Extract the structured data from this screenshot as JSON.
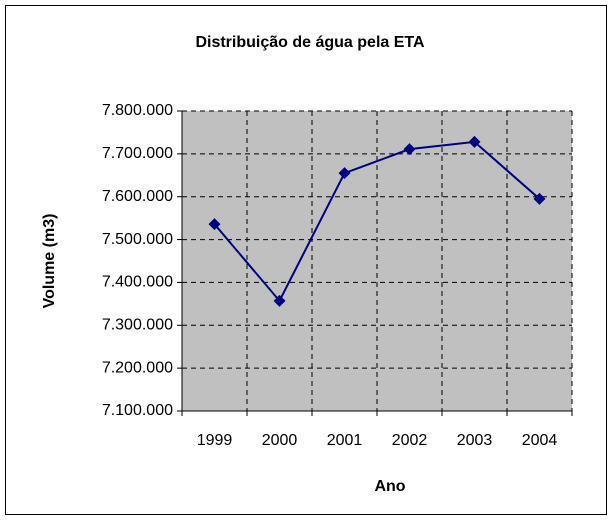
{
  "chart_data": {
    "type": "line",
    "title": "Distribuição de água pela ETA",
    "x_label": "Ano",
    "y_label": "Volume  (m3)",
    "categories": [
      "1999",
      "2000",
      "2001",
      "2002",
      "2003",
      "2004"
    ],
    "series": [
      {
        "name": "Volume",
        "color": "#000080",
        "values": [
          7536000,
          7357000,
          7655000,
          7711000,
          7728000,
          7595000
        ]
      }
    ],
    "ylim": [
      7100000,
      7800000
    ],
    "yticks": [
      {
        "value": 7100000,
        "label": "7.100.000"
      },
      {
        "value": 7200000,
        "label": "7.200.000"
      },
      {
        "value": 7300000,
        "label": "7.300.000"
      },
      {
        "value": 7400000,
        "label": "7.400.000"
      },
      {
        "value": 7500000,
        "label": "7.500.000"
      },
      {
        "value": 7600000,
        "label": "7.600.000"
      },
      {
        "value": 7700000,
        "label": "7.700.000"
      },
      {
        "value": 7800000,
        "label": "7.800.000"
      }
    ],
    "grid": true
  }
}
